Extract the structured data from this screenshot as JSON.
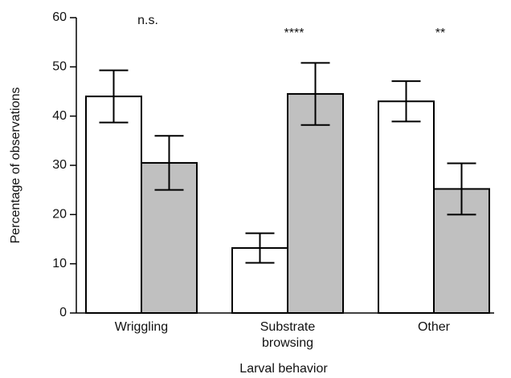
{
  "chart_data": {
    "type": "bar",
    "x_label": "Larval behavior",
    "y_label": "Percentage of observations",
    "categories": [
      "Wriggling",
      "Substrate browsing",
      "Other"
    ],
    "series": [
      {
        "color": "#ffffff",
        "values": [
          44,
          13.2,
          43
        ],
        "errors": [
          5.3,
          3,
          4.1
        ]
      },
      {
        "color": "#c0c0c0",
        "values": [
          30.5,
          44.5,
          25.2
        ],
        "errors": [
          5.5,
          6.3,
          5.2
        ]
      }
    ],
    "annotations": [
      "n.s.",
      "****",
      "**"
    ],
    "ylim": [
      0,
      60
    ],
    "yticks": [
      0,
      10,
      20,
      30,
      40,
      50,
      60
    ],
    "grid": false
  }
}
